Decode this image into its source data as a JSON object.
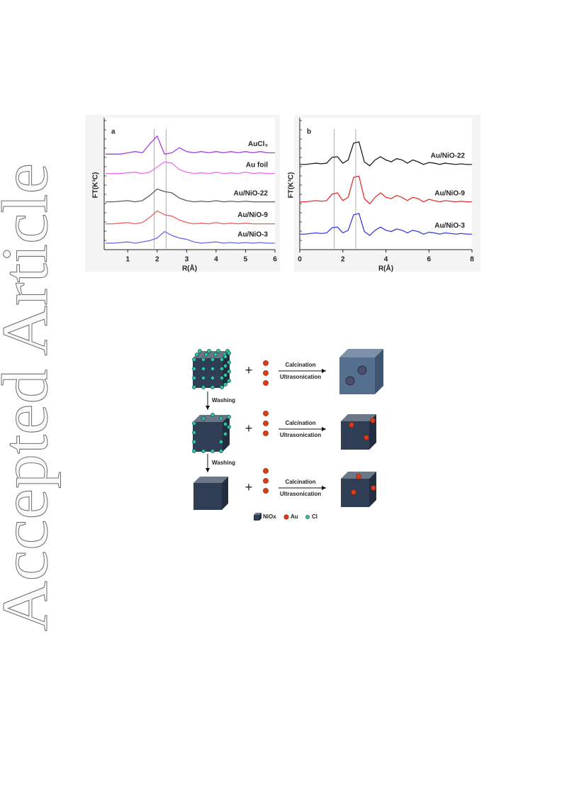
{
  "watermark": "Accepted Article",
  "chart_data": [
    {
      "type": "line",
      "panel_label": "a",
      "x_label": "R(Å)",
      "y_label": "FT(K³C)",
      "xlim": [
        0.2,
        6
      ],
      "xticks": [
        1,
        2,
        3,
        4,
        5,
        6
      ],
      "ylim": [
        0,
        10
      ],
      "reference_lines": [
        1.9,
        2.3
      ],
      "x": [
        0.25,
        0.5,
        0.75,
        1.0,
        1.25,
        1.5,
        1.75,
        2.0,
        2.25,
        2.5,
        2.75,
        3.0,
        3.25,
        3.5,
        3.75,
        4.0,
        4.25,
        4.5,
        4.75,
        5.0,
        5.25,
        5.5,
        5.75,
        6.0
      ],
      "series": [
        {
          "name": "AuCl₃",
          "color": "#a63ee0",
          "values": [
            7.4,
            7.4,
            7.4,
            7.5,
            7.6,
            7.5,
            8.2,
            8.8,
            7.4,
            7.5,
            7.9,
            7.6,
            7.5,
            7.6,
            7.5,
            7.6,
            7.5,
            7.6,
            7.5,
            7.6,
            7.5,
            7.6,
            7.5,
            7.5
          ]
        },
        {
          "name": "Au foil",
          "color": "#ee6ef0",
          "values": [
            5.9,
            5.9,
            5.9,
            5.95,
            6.0,
            5.9,
            6.0,
            6.4,
            6.8,
            6.7,
            6.2,
            6.0,
            5.9,
            5.95,
            5.9,
            6.0,
            5.9,
            5.95,
            5.9,
            6.0,
            5.9,
            5.95,
            5.9,
            5.9
          ]
        },
        {
          "name": "Au/NiO-22",
          "color": "#5e5e5e",
          "values": [
            3.7,
            3.7,
            3.75,
            3.8,
            3.7,
            3.8,
            4.2,
            4.7,
            4.5,
            4.4,
            4.0,
            3.8,
            3.7,
            3.75,
            3.7,
            3.8,
            3.7,
            3.75,
            3.7,
            3.75,
            3.7,
            3.7,
            3.7,
            3.7
          ]
        },
        {
          "name": "Au/NiO-9",
          "color": "#e8605c",
          "values": [
            2.0,
            2.0,
            2.05,
            2.1,
            2.0,
            2.1,
            2.5,
            3.0,
            2.7,
            2.6,
            2.3,
            2.1,
            2.0,
            2.05,
            2.0,
            2.1,
            2.0,
            2.05,
            2.0,
            2.05,
            2.0,
            2.0,
            2.0,
            2.0
          ]
        },
        {
          "name": "Au/NiO-3",
          "color": "#6a66e6",
          "values": [
            0.5,
            0.5,
            0.55,
            0.6,
            0.5,
            0.6,
            0.7,
            0.9,
            1.4,
            1.1,
            0.9,
            0.8,
            0.6,
            0.5,
            0.55,
            0.6,
            0.5,
            0.55,
            0.5,
            0.55,
            0.5,
            0.55,
            0.5,
            0.5
          ]
        }
      ]
    },
    {
      "type": "line",
      "panel_label": "b",
      "x_label": "R(Å)",
      "y_label": "FT(K³C)",
      "xlim": [
        0,
        8
      ],
      "xticks": [
        0,
        2,
        4,
        6,
        8
      ],
      "ylim": [
        0,
        10
      ],
      "reference_lines": [
        1.6,
        2.6
      ],
      "x": [
        0,
        0.25,
        0.5,
        0.75,
        1.0,
        1.25,
        1.5,
        1.75,
        2.0,
        2.25,
        2.5,
        2.75,
        3.0,
        3.25,
        3.5,
        3.75,
        4.0,
        4.25,
        4.5,
        4.75,
        5.0,
        5.25,
        5.5,
        5.75,
        6.0,
        6.25,
        6.5,
        6.75,
        7.0,
        7.25,
        7.5,
        7.75,
        8.0
      ],
      "series": [
        {
          "name": "Au/NiO-22",
          "color": "#1e1e1e",
          "values": [
            6.6,
            6.6,
            6.65,
            6.7,
            6.65,
            6.7,
            7.15,
            7.2,
            6.7,
            6.95,
            8.25,
            8.35,
            6.8,
            6.5,
            6.95,
            7.2,
            6.95,
            6.8,
            7.05,
            6.95,
            6.7,
            6.95,
            6.8,
            6.6,
            6.75,
            6.7,
            6.6,
            6.7,
            6.65,
            6.6,
            6.65,
            6.6,
            6.6
          ]
        },
        {
          "name": "Au/NiO-9",
          "color": "#e2322e",
          "values": [
            3.7,
            3.7,
            3.75,
            3.8,
            3.75,
            3.8,
            4.3,
            4.4,
            3.8,
            4.05,
            5.6,
            5.7,
            3.95,
            3.55,
            4.05,
            4.4,
            4.05,
            3.95,
            4.2,
            4.05,
            3.8,
            4.05,
            3.95,
            3.7,
            3.9,
            3.8,
            3.7,
            3.8,
            3.75,
            3.7,
            3.75,
            3.7,
            3.7
          ]
        },
        {
          "name": "Au/NiO-3",
          "color": "#3a3ae2",
          "values": [
            1.2,
            1.2,
            1.25,
            1.3,
            1.25,
            1.3,
            1.7,
            1.75,
            1.3,
            1.5,
            2.7,
            2.8,
            1.4,
            1.1,
            1.5,
            1.75,
            1.5,
            1.4,
            1.6,
            1.5,
            1.3,
            1.5,
            1.4,
            1.2,
            1.35,
            1.3,
            1.2,
            1.3,
            1.25,
            1.2,
            1.25,
            1.2,
            1.2
          ]
        }
      ]
    }
  ],
  "scheme": {
    "rows": [
      {
        "operator": "+",
        "arrow_top": "Calcination",
        "arrow_bottom": "Ultrasonication"
      },
      {
        "operator": "+",
        "arrow_top": "Calcination",
        "arrow_bottom": "Ultrasonication"
      },
      {
        "operator": "+",
        "arrow_top": "Calcination",
        "arrow_bottom": "Ultrasonication"
      }
    ],
    "washing": [
      "Washing",
      "Washing"
    ],
    "legend": [
      "NiOx",
      "Au",
      "Cl"
    ]
  }
}
